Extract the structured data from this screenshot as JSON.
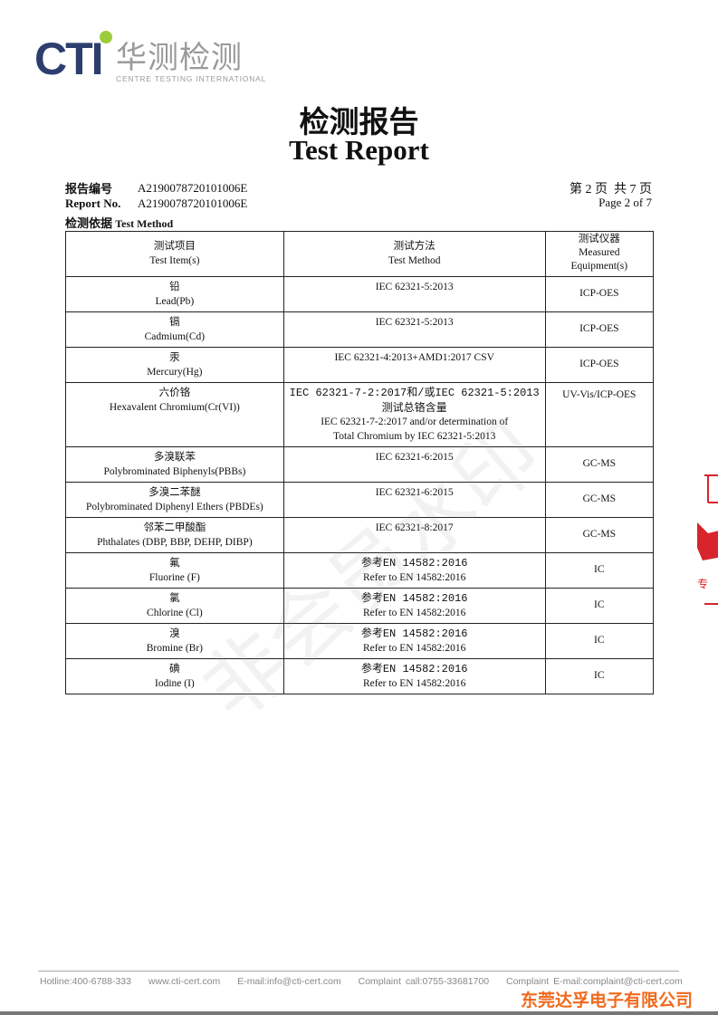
{
  "logo": {
    "brand": "CTI",
    "name_cn": "华测检测",
    "name_en": "CENTRE TESTING INTERNATIONAL",
    "colors": {
      "brand": "#2d3e6e",
      "dot": "#9ccc3c",
      "text": "#9a9a9a"
    }
  },
  "title": {
    "cn": "检测报告",
    "en": "Test Report"
  },
  "report_no": {
    "label_cn": "报告编号",
    "label_en": "Report No.",
    "value_cn": "A2190078720101006E",
    "value_en": "A2190078720101006E"
  },
  "page": {
    "cn": "第 2 页  共 7 页",
    "en": "Page 2 of 7"
  },
  "section": {
    "cn": "检测依据",
    "en": "Test Method"
  },
  "table": {
    "headers": [
      {
        "cn": "测试项目",
        "en": "Test Item(s)"
      },
      {
        "cn": "测试方法",
        "en": "Test Method"
      },
      {
        "cn": "测试仪器",
        "en1": "Measured",
        "en2": "Equipment(s)"
      }
    ],
    "rows": [
      {
        "item_cn": "铅",
        "item_en": "Lead(Pb)",
        "method": "IEC 62321-5:2013",
        "equipment": "ICP-OES"
      },
      {
        "item_cn": "镉",
        "item_en": "Cadmium(Cd)",
        "method": "IEC 62321-5:2013",
        "equipment": "ICP-OES"
      },
      {
        "item_cn": "汞",
        "item_en": "Mercury(Hg)",
        "method": "IEC 62321-4:2013+AMD1:2017 CSV",
        "equipment": "ICP-OES"
      },
      {
        "item_cn": "六价铬",
        "item_en": "Hexavalent Chromium(Cr(VI))",
        "method": "IEC 62321-7-2:2017和/或IEC 62321-5:2013",
        "method2": "测试总铬含量",
        "method3": "IEC 62321-7-2:2017 and/or determination of",
        "method4": "Total Chromium by IEC 62321-5:2013",
        "equipment": "UV-Vis/ICP-OES"
      },
      {
        "item_cn": "多溴联苯",
        "item_en": "Polybrominated Biphenyls(PBBs)",
        "method": "IEC 62321-6:2015",
        "equipment": "GC-MS"
      },
      {
        "item_cn": "多溴二苯醚",
        "item_en": "Polybrominated Diphenyl Ethers (PBDEs)",
        "method": "IEC 62321-6:2015",
        "equipment": "GC-MS"
      },
      {
        "item_cn": "邻苯二甲酸酯",
        "item_en": "Phthalates (DBP, BBP, DEHP, DIBP)",
        "method": "IEC 62321-8:2017",
        "equipment": "GC-MS"
      },
      {
        "item_cn": "氟",
        "item_en": "Fluorine (F)",
        "method": "参考EN 14582:2016",
        "method2": "Refer to EN 14582:2016",
        "equipment": "IC"
      },
      {
        "item_cn": "氯",
        "item_en": "Chlorine (Cl)",
        "method": "参考EN 14582:2016",
        "method2": "Refer to EN 14582:2016",
        "equipment": "IC"
      },
      {
        "item_cn": "溴",
        "item_en": "Bromine (Br)",
        "method": "参考EN 14582:2016",
        "method2": "Refer to EN 14582:2016",
        "equipment": "IC"
      },
      {
        "item_cn": "碘",
        "item_en": "Iodine (I)",
        "method": "参考EN 14582:2016",
        "method2": "Refer to EN 14582:2016",
        "equipment": "IC"
      }
    ]
  },
  "watermark": "非会员水印",
  "footer": {
    "hotline": "Hotline:400-6788-333",
    "web": "www.cti-cert.com",
    "email": "E-mail:info@cti-cert.com",
    "complaint_call": "Complaint call:0755-33681700",
    "complaint_email": "Complaint E-mail:complaint@cti-cert.com"
  },
  "company": "东莞达孚电子有限公司",
  "colors": {
    "company": "#f06a1e",
    "stamp": "#d8242c"
  }
}
